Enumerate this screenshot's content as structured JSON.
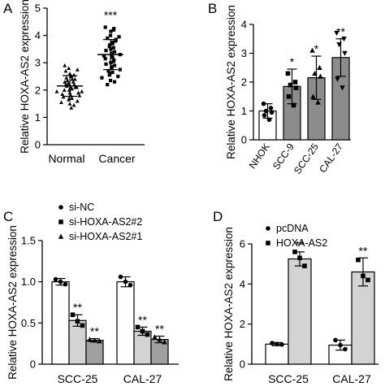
{
  "figure": {
    "panels": [
      {
        "id": "A",
        "letter": "A"
      },
      {
        "id": "B",
        "letter": "B"
      },
      {
        "id": "C",
        "letter": "C"
      },
      {
        "id": "D",
        "letter": "D"
      }
    ]
  },
  "chart_data": [
    {
      "panel": "A",
      "type": "scatter",
      "ylabel": "Relative HOXA-AS2 expression",
      "ylim": [
        0,
        5
      ],
      "yticks": [
        "0",
        "1",
        "2",
        "3",
        "4",
        "5"
      ],
      "categories": [
        "Normal",
        "Cancer"
      ],
      "groups": [
        {
          "name": "Normal",
          "mean": 2.15,
          "sd": 0.38,
          "marker": "triangle",
          "points": [
            2.9,
            2.8,
            2.75,
            2.7,
            2.6,
            2.55,
            2.5,
            2.45,
            2.4,
            2.4,
            2.35,
            2.3,
            2.3,
            2.25,
            2.2,
            2.2,
            2.2,
            2.15,
            2.1,
            2.1,
            2.1,
            2.05,
            2.0,
            2.0,
            1.95,
            1.95,
            1.9,
            1.9,
            1.85,
            1.8,
            1.8,
            1.75,
            1.7,
            1.7,
            1.65,
            1.6,
            1.55,
            1.5,
            1.45,
            1.35
          ]
        },
        {
          "name": "Cancer",
          "mean": 3.3,
          "sd": 0.55,
          "marker": "square",
          "significance": "***",
          "points": [
            4.3,
            4.25,
            4.2,
            4.15,
            4.0,
            3.95,
            3.9,
            3.85,
            3.8,
            3.75,
            3.7,
            3.65,
            3.6,
            3.55,
            3.5,
            3.45,
            3.4,
            3.35,
            3.3,
            3.3,
            3.25,
            3.2,
            3.15,
            3.1,
            3.05,
            3.0,
            2.95,
            2.9,
            2.85,
            2.8,
            2.75,
            2.7,
            2.65,
            2.6,
            2.55,
            2.5,
            2.45,
            2.35,
            2.3,
            2.2
          ]
        }
      ]
    },
    {
      "panel": "B",
      "type": "bar",
      "ylabel": "Relative HOXA-AS2 expression",
      "ylim": [
        0,
        4
      ],
      "yticks": [
        "0",
        "1",
        "2",
        "3",
        "4"
      ],
      "categories": [
        "NHOK",
        "SCC-9",
        "SCC-25",
        "CAL-27"
      ],
      "values": [
        1.0,
        1.85,
        2.15,
        2.85
      ],
      "errors": [
        0.25,
        0.6,
        0.75,
        0.65
      ],
      "significance": [
        "",
        "*",
        "*",
        "**"
      ],
      "bar_colors": [
        "#ffffff",
        "#8c8c8c",
        "#8c8c8c",
        "#8c8c8c"
      ],
      "markers": [
        "circle",
        "square",
        "triangle",
        "triangle-down"
      ],
      "points": [
        [
          1.25,
          1.1,
          1.0,
          0.95,
          0.85,
          0.7
        ],
        [
          2.3,
          2.0,
          1.9,
          1.8,
          1.5,
          1.2
        ],
        [
          3.1,
          2.5,
          2.3,
          2.2,
          1.5,
          1.3
        ],
        [
          3.7,
          3.5,
          3.3,
          3.0,
          2.1,
          1.8
        ]
      ]
    },
    {
      "panel": "C",
      "type": "bar",
      "ylabel": "Relative HOXA-AS2 expression",
      "ylim": [
        0,
        1.5
      ],
      "yticks": [
        "0",
        "0.5",
        "1.0",
        "1.5"
      ],
      "categories": [
        "SCC-25",
        "CAL-27"
      ],
      "series": [
        {
          "name": "si-NC",
          "marker": "circle",
          "color": "#ffffff",
          "values": [
            1.0,
            1.0
          ],
          "errors": [
            0.04,
            0.06
          ],
          "significance": [
            "",
            ""
          ],
          "points": [
            [
              1.03,
              1.0,
              0.97
            ],
            [
              1.06,
              1.0,
              0.96
            ]
          ]
        },
        {
          "name": "si-HOXA-AS2#2",
          "marker": "square",
          "color": "#d3d3d3",
          "values": [
            0.53,
            0.4
          ],
          "errors": [
            0.07,
            0.05
          ],
          "significance": [
            "**",
            "**"
          ],
          "points": [
            [
              0.6,
              0.52,
              0.47
            ],
            [
              0.45,
              0.4,
              0.36
            ]
          ]
        },
        {
          "name": "si-HOXA-AS2#1",
          "marker": "triangle",
          "color": "#a0a0a0",
          "values": [
            0.29,
            0.3
          ],
          "errors": [
            0.02,
            0.04
          ],
          "significance": [
            "**",
            "**"
          ],
          "points": [
            [
              0.3,
              0.29,
              0.28
            ],
            [
              0.33,
              0.3,
              0.27
            ]
          ]
        }
      ]
    },
    {
      "panel": "D",
      "type": "bar",
      "ylabel": "Relative HOXA-AS2 expression",
      "ylim": [
        0,
        6
      ],
      "yticks": [
        "0",
        "2",
        "4",
        "6"
      ],
      "categories": [
        "SCC-25",
        "CAL-27"
      ],
      "series": [
        {
          "name": "pcDNA",
          "marker": "circle",
          "color": "#ffffff",
          "values": [
            1.0,
            0.95
          ],
          "errors": [
            0.08,
            0.25
          ],
          "significance": [
            "",
            ""
          ],
          "points": [
            [
              1.05,
              1.0,
              0.98
            ],
            [
              1.2,
              0.95,
              0.75
            ]
          ]
        },
        {
          "name": "HOXA-AS2",
          "marker": "square",
          "color": "#d3d3d3",
          "values": [
            5.25,
            4.6
          ],
          "errors": [
            0.35,
            0.7
          ],
          "significance": [
            "**",
            "**"
          ],
          "points": [
            [
              5.6,
              5.3,
              4.9
            ],
            [
              5.2,
              4.4,
              4.2
            ]
          ]
        }
      ]
    }
  ]
}
